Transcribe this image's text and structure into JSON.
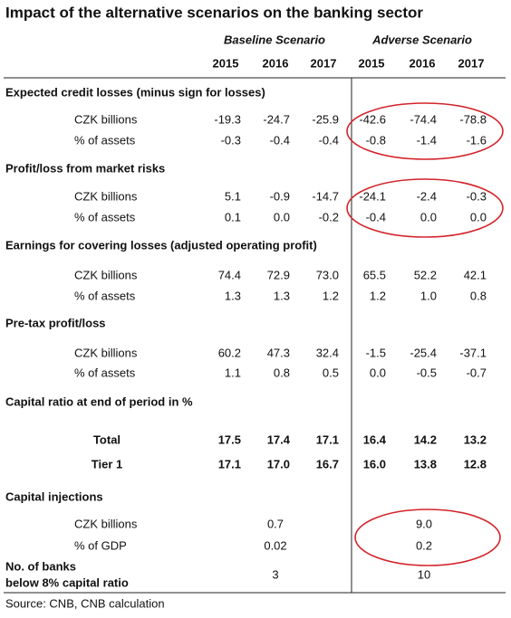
{
  "title": "Impact of the alternative scenarios on the banking sector",
  "column_groups": [
    "Baseline Scenario",
    "Adverse Scenario"
  ],
  "years": [
    "2015",
    "2016",
    "2017",
    "2015",
    "2016",
    "2017"
  ],
  "sections": [
    {
      "title": "Expected credit losses (minus sign for losses)",
      "rows": [
        {
          "label": "CZK billions",
          "values": [
            "-19.3",
            "-24.7",
            "-25.9",
            "-42.6",
            "-74.4",
            "-78.8"
          ]
        },
        {
          "label": "% of assets",
          "values": [
            "-0.3",
            "-0.4",
            "-0.4",
            "-0.8",
            "-1.4",
            "-1.6"
          ]
        }
      ]
    },
    {
      "title": "Profit/loss from market risks",
      "rows": [
        {
          "label": "CZK billions",
          "values": [
            "5.1",
            "-0.9",
            "-14.7",
            "-24.1",
            "-2.4",
            "-0.3"
          ]
        },
        {
          "label": "% of assets",
          "values": [
            "0.1",
            "0.0",
            "-0.2",
            "-0.4",
            "0.0",
            "0.0"
          ]
        }
      ]
    },
    {
      "title": "Earnings for covering losses (adjusted operating profit)",
      "rows": [
        {
          "label": "CZK billions",
          "values": [
            "74.4",
            "72.9",
            "73.0",
            "65.5",
            "52.2",
            "42.1"
          ]
        },
        {
          "label": "% of assets",
          "values": [
            "1.3",
            "1.3",
            "1.2",
            "1.2",
            "1.0",
            "0.8"
          ]
        }
      ]
    },
    {
      "title": "Pre-tax profit/loss",
      "rows": [
        {
          "label": "CZK billions",
          "values": [
            "60.2",
            "47.3",
            "32.4",
            "-1.5",
            "-25.4",
            "-37.1"
          ]
        },
        {
          "label": "% of assets",
          "values": [
            "1.1",
            "0.8",
            "0.5",
            "0.0",
            "-0.5",
            "-0.7"
          ]
        }
      ]
    },
    {
      "title": "Capital ratio at end of period in %",
      "rows": [
        {
          "label": "Total",
          "values": [
            "17.5",
            "17.4",
            "17.1",
            "16.4",
            "14.2",
            "13.2"
          ]
        },
        {
          "label": "Tier 1",
          "values": [
            "17.1",
            "17.0",
            "16.7",
            "16.0",
            "13.8",
            "12.8"
          ]
        }
      ]
    },
    {
      "title": "Capital injections",
      "rows": [
        {
          "label": "CZK billions",
          "baseline": "0.7",
          "adverse": "9.0"
        },
        {
          "label": "% of GDP",
          "baseline": "0.02",
          "adverse": "0.2"
        },
        {
          "label_lines": [
            "No. of banks",
            "below 8% capital ratio"
          ],
          "baseline": "3",
          "adverse": "10"
        }
      ]
    }
  ],
  "source": "Source: CNB, CNB calculation"
}
